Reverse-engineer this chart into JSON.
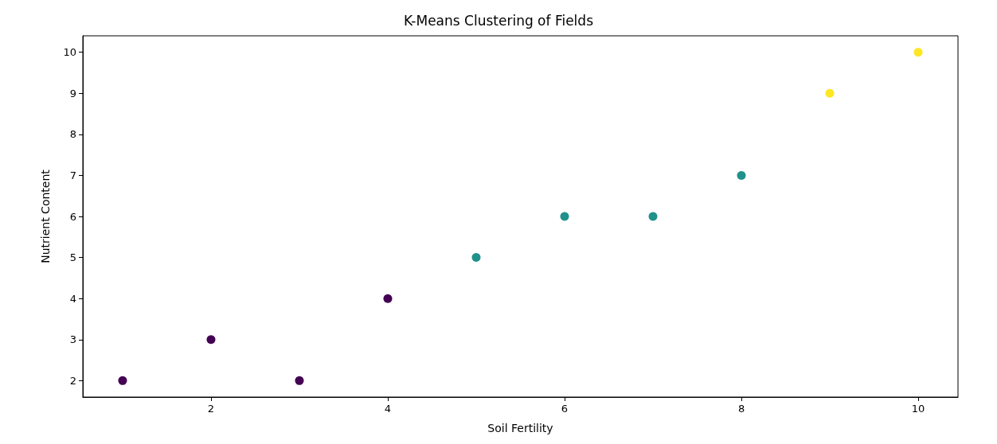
{
  "chart_data": {
    "type": "scatter",
    "title": "K-Means Clustering of Fields",
    "xlabel": "Soil Fertility",
    "ylabel": "Nutrient Content",
    "x": [
      1,
      2,
      3,
      4,
      5,
      6,
      7,
      8,
      9,
      10
    ],
    "values": [
      2,
      3,
      2,
      4,
      5,
      6,
      6,
      7,
      9,
      10
    ],
    "colors": [
      "#440154",
      "#440154",
      "#440154",
      "#440154",
      "#21918c",
      "#21918c",
      "#21918c",
      "#21918c",
      "#fde725",
      "#fde725"
    ],
    "xlim": [
      0.55,
      10.45
    ],
    "xticks": [
      2,
      4,
      6,
      8,
      10
    ],
    "ylim": [
      1.6,
      10.4
    ],
    "yticks": [
      2,
      3,
      4,
      5,
      6,
      7,
      8,
      9,
      10
    ],
    "grid": false,
    "marker": "circle"
  }
}
